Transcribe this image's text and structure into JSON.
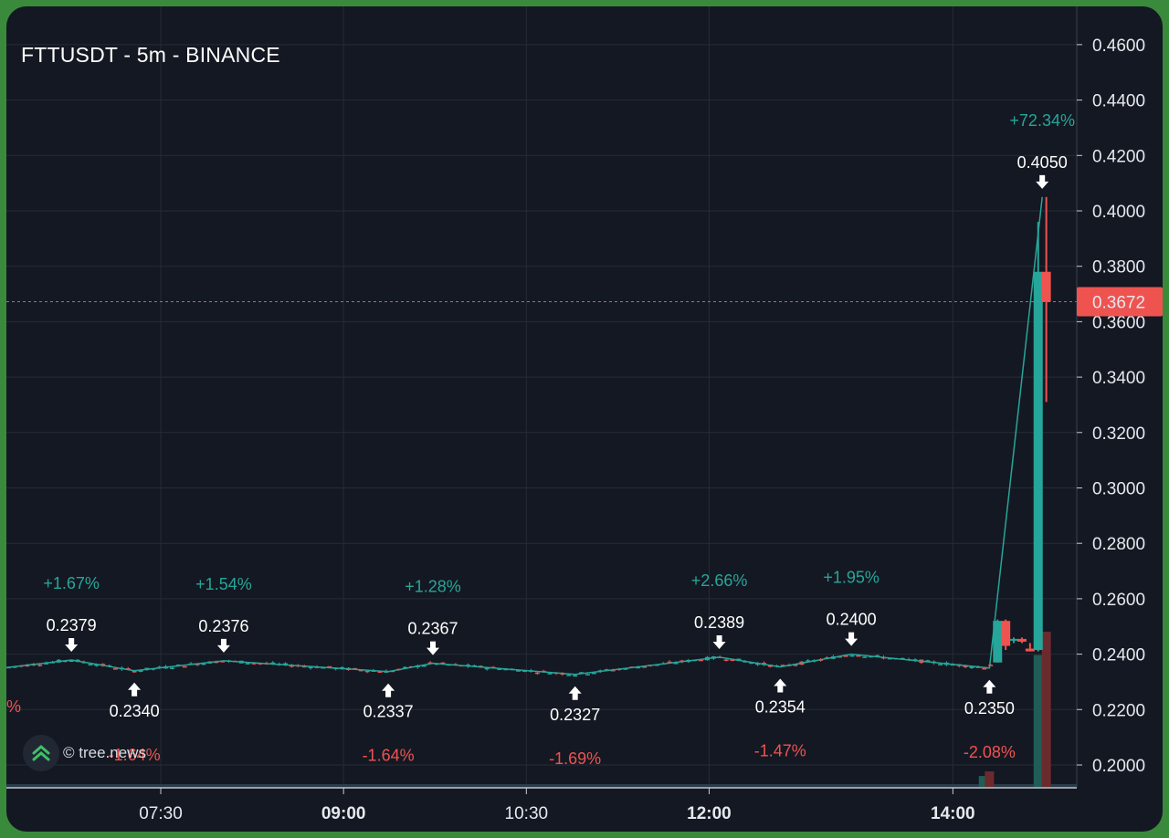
{
  "title": "FTTUSDT - 5m - BINANCE",
  "watermark": "© tree.news",
  "colors": {
    "up": "#26a69a",
    "down": "#ef5350",
    "bg": "#141822",
    "grid": "#262b36",
    "price_line": "#ef5350"
  },
  "chart_data": {
    "type": "candlestick",
    "symbol": "FTTUSDT",
    "interval": "5m",
    "exchange": "BINANCE",
    "ylim": [
      0.1925,
      0.4725
    ],
    "y_ticks": [
      "0.4600",
      "0.4400",
      "0.4200",
      "0.4000",
      "0.3800",
      "0.3600",
      "0.3400",
      "0.3200",
      "0.3000",
      "0.2800",
      "0.2600",
      "0.2400",
      "0.2200",
      "0.2000"
    ],
    "y_tick_values": [
      0.46,
      0.44,
      0.42,
      0.4,
      0.38,
      0.36,
      0.34,
      0.32,
      0.3,
      0.28,
      0.26,
      0.24,
      0.22,
      0.2
    ],
    "x_range_minutes": [
      374,
      901
    ],
    "x_ticks": [
      {
        "label": "07:30",
        "minute": 450,
        "bold": false
      },
      {
        "label": "09:00",
        "minute": 540,
        "bold": true
      },
      {
        "label": "10:30",
        "minute": 630,
        "bold": false
      },
      {
        "label": "12:00",
        "minute": 720,
        "bold": true
      },
      {
        "label": "14:00",
        "minute": 840,
        "bold": true
      }
    ],
    "current_price": "0.3672",
    "current_price_value": 0.3672,
    "zigzag": [
      {
        "minute": 374,
        "price": 0.2352
      },
      {
        "minute": 406,
        "price": 0.2379
      },
      {
        "minute": 437,
        "price": 0.234
      },
      {
        "minute": 481,
        "price": 0.2376
      },
      {
        "minute": 562,
        "price": 0.2337
      },
      {
        "minute": 584,
        "price": 0.2367
      },
      {
        "minute": 654,
        "price": 0.2327
      },
      {
        "minute": 725,
        "price": 0.2389
      },
      {
        "minute": 755,
        "price": 0.2354
      },
      {
        "minute": 790,
        "price": 0.24
      },
      {
        "minute": 858,
        "price": 0.235
      },
      {
        "minute": 938,
        "price": 0.405
      }
    ],
    "swing_points": [
      {
        "minute": 406,
        "price": 0.2379,
        "label": "0.2379",
        "type": "high",
        "pct": "+1.67%"
      },
      {
        "minute": 437,
        "price": 0.234,
        "label": "0.2340",
        "type": "low",
        "pct": "-1.64%"
      },
      {
        "minute": 481,
        "price": 0.2376,
        "label": "0.2376",
        "type": "high",
        "pct": "+1.54%"
      },
      {
        "minute": 562,
        "price": 0.2337,
        "label": "0.2337",
        "type": "low",
        "pct": "-1.64%"
      },
      {
        "minute": 584,
        "price": 0.2367,
        "label": "0.2367",
        "type": "high",
        "pct": "+1.28%"
      },
      {
        "minute": 654,
        "price": 0.2327,
        "label": "0.2327",
        "type": "low",
        "pct": "-1.69%"
      },
      {
        "minute": 725,
        "price": 0.2389,
        "label": "0.2389",
        "type": "high",
        "pct": "+2.66%"
      },
      {
        "minute": 755,
        "price": 0.2354,
        "label": "0.2354",
        "type": "low",
        "pct": "-1.47%"
      },
      {
        "minute": 790,
        "price": 0.24,
        "label": "0.2400",
        "type": "high",
        "pct": "+1.95%"
      },
      {
        "minute": 858,
        "price": 0.235,
        "label": "0.2350",
        "type": "low",
        "pct": "-2.08%"
      },
      {
        "minute": 884,
        "price": 0.405,
        "label": "0.4050",
        "type": "high",
        "pct": "+72.34%"
      }
    ],
    "edge_pct": "%",
    "big_candles": [
      {
        "minute": 862,
        "open": 0.237,
        "high": 0.2525,
        "low": 0.237,
        "close": 0.252
      },
      {
        "minute": 866,
        "open": 0.252,
        "high": 0.2525,
        "low": 0.2415,
        "close": 0.243
      },
      {
        "minute": 870,
        "open": 0.245,
        "high": 0.246,
        "low": 0.244,
        "close": 0.2455
      },
      {
        "minute": 874,
        "open": 0.2455,
        "high": 0.246,
        "low": 0.244,
        "close": 0.2445
      },
      {
        "minute": 878,
        "open": 0.242,
        "high": 0.244,
        "low": 0.241,
        "close": 0.241
      },
      {
        "minute": 882,
        "open": 0.2415,
        "high": 0.396,
        "low": 0.241,
        "close": 0.378
      },
      {
        "minute": 886,
        "open": 0.378,
        "high": 0.405,
        "low": 0.331,
        "close": 0.3672
      }
    ],
    "volume_bars": [
      {
        "minute": 855,
        "rel": 0.07,
        "dir": "up"
      },
      {
        "minute": 858,
        "rel": 0.1,
        "dir": "down"
      },
      {
        "minute": 882,
        "rel": 0.85,
        "dir": "up"
      },
      {
        "minute": 886,
        "rel": 1.0,
        "dir": "down"
      }
    ]
  }
}
